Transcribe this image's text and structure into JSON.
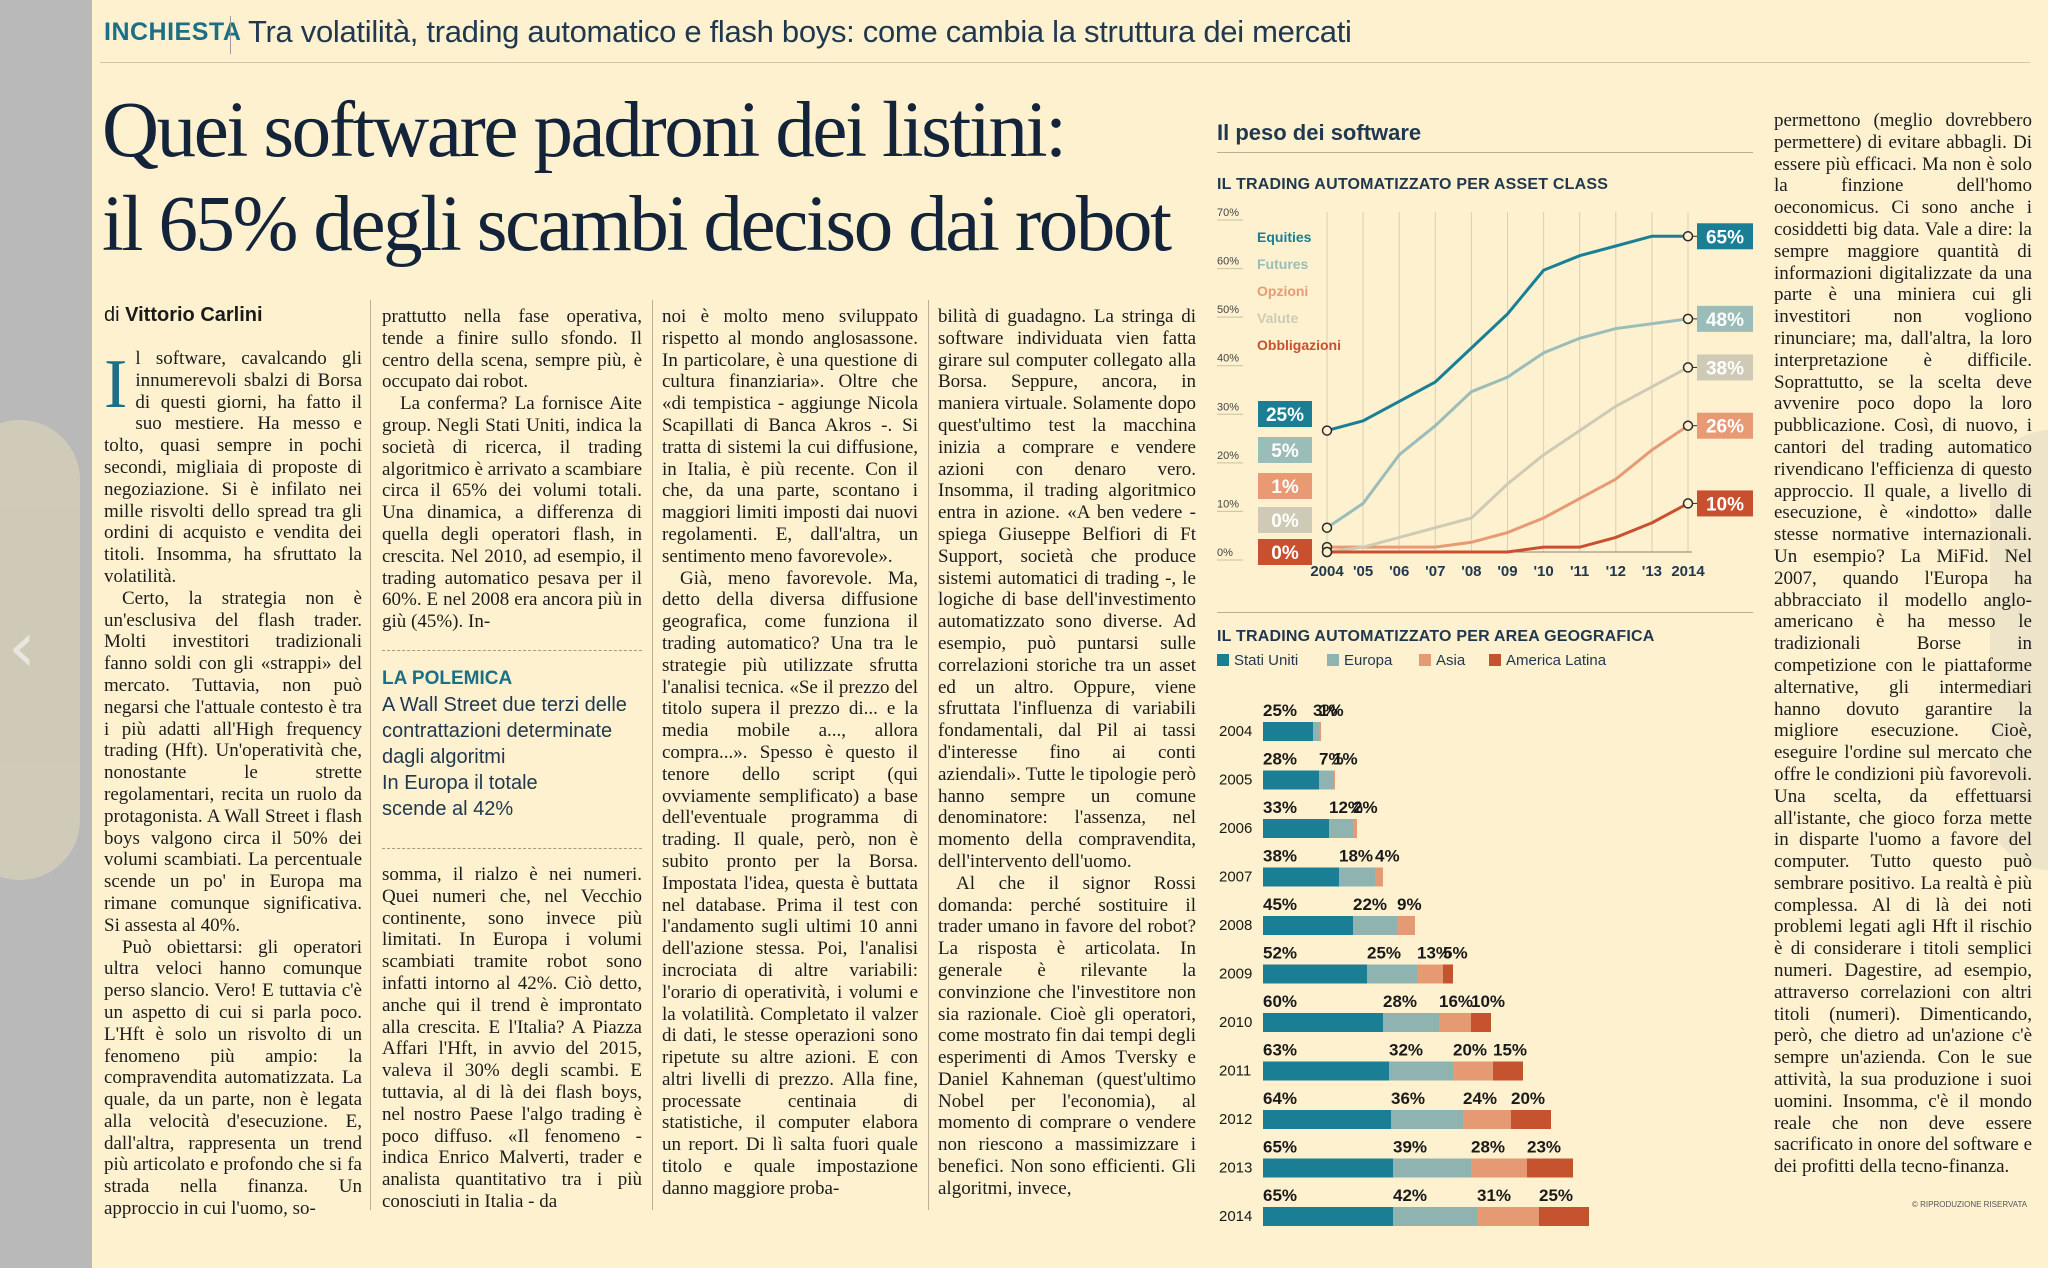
{
  "header": {
    "kicker": "INCHIESTA",
    "overline": "Tra volatilità, trading automatico e flash boys: come cambia la struttura dei mercati",
    "headline_1": "Quei software padroni dei listini:",
    "headline_2": "il 65% degli scambi deciso dai robot"
  },
  "byline": {
    "prefix": "di",
    "author": "Vittorio Carlini"
  },
  "article": {
    "dropcap": "I",
    "col1": [
      "l software, cavalcando gli innumerevoli sbalzi di Borsa di questi giorni, ha fatto il suo mestiere. Ha messo e tolto, quasi sempre in pochi secondi, migliaia di proposte di negoziazione. Si è infilato nei mille risvolti dello spread tra gli ordini di acquisto e vendita dei titoli. Insomma, ha sfruttato la volatilità.",
      "Certo, la strategia non è un'esclusiva del flash trader. Molti investitori tradizionali fanno soldi con gli «strappi» del mercato. Tuttavia, non può negarsi che l'attuale contesto è tra i più adatti all'High frequency trading (Hft). Un'operatività che, nonostante le strette regolamentari, recita un ruolo da protagonista. A Wall Street i flash boys valgono circa il 50% dei volumi scambiati. La percentuale scende un po' in Europa ma rimane comunque significativa. Si assesta al 40%.",
      "Può obiettarsi: gli operatori ultra veloci hanno comunque perso slancio. Vero! E tuttavia c'è un aspetto di cui si parla poco. L'Hft è solo un risvolto di un fenomeno più ampio: la compravendita automatizzata. La quale, da un parte, non è legata alla velocità d'esecuzione. E, dall'altra, rappresenta un trend più articolato e profondo che si fa strada nella finanza. Un approccio in cui l'uomo, so-"
    ],
    "col2": [
      "prattutto nella fase operativa, tende a finire sullo sfondo. Il centro della scena, sempre più, è occupato dai robot.",
      "La conferma? La fornisce Aite group. Negli Stati Uniti, indica la società di ricerca, il trading algoritmico è arrivato a scambiare circa il 65% dei volumi totali. Una dinamica, a differenza di quella degli operatori flash, in crescita. Nel 2010, ad esempio, il trading automatico pesava per il 60%. E nel 2008 era ancora più in giù (45%). In-",
      "somma, il rialzo è nei numeri. Quei numeri che, nel Vecchio continente, sono invece più limitati. In Europa i volumi scambiati tramite robot sono infatti intorno al 42%. Ciò detto, anche qui il trend è improntato alla crescita. E l'Italia? A Piazza Affari l'Hft, in avvio del 2015, valeva il 30% degli scambi. E tuttavia, al di là dei flash boys, nel nostro Paese l'algo trading è poco diffuso. «Il fenomeno - indica Enrico Malverti, trader e analista quantitativo tra i più conosciuti in Italia - da"
    ],
    "col3": [
      "noi è molto meno sviluppato rispetto al mondo anglosassone. In particolare, è una questione di cultura finanziaria». Oltre che «di tempistica - aggiunge Nicola Scapillati di Banca Akros -. Si tratta di sistemi la cui diffusione, in Italia, è più recente. Con il che, da una parte, scontano i maggiori limiti imposti dai nuovi regolamenti. E, dall'altra, un sentimento meno favorevole».",
      "Già, meno favorevole. Ma, detto della diversa diffusione geografica, come funziona il trading automatico? Una tra le strategie più utilizzate sfrutta l'analisi tecnica. «Se il prezzo del titolo supera il prezzo di... e la media mobile a..., allora compra...». Spesso è questo il tenore dello script (qui ovviamente semplificato) a base dell'eventuale programma di trading. Il quale, però, non è subito pronto per la Borsa. Impostata l'idea, questa è buttata nel database. Prima il test con l'andamento sugli ultimi 10 anni dell'azione stessa. Poi, l'analisi incrociata di altre variabili: l'orario di operatività, i volumi e la volatilità. Completato il valzer di dati, le stesse operazioni sono ripetute su altre azioni. E con altri livelli di prezzo. Alla fine, processate centinaia di statistiche, il computer elabora un report. Di lì salta fuori quale titolo e quale impostazione danno maggiore proba-"
    ],
    "col4": [
      "bilità di guadagno. La stringa di software individuata vien fatta girare sul computer collegato alla Borsa. Seppure, ancora, in maniera virtuale. Solamente dopo quest'ultimo test la macchina inizia a comprare e vendere azioni con denaro vero. Insomma, il trading algoritmico entra in azione. «A ben vedere - spiega Giuseppe Belfiori di Ft Support, società che produce sistemi automatici di trading -, le logiche di base dell'investimento automatizzato sono diverse. Ad esempio, può puntarsi sulle correlazioni storiche tra un asset ed un altro. Oppure, viene sfruttata l'influenza di variabili fondamentali, dal Pil ai tassi d'interesse fino ai conti aziendali». Tutte le tipologie però hanno sempre un comune denominatore: l'assenza, nel momento della compravendita, dell'intervento dell'uomo.",
      "Al che il signor Rossi domanda: perché sostituire il trader umano in favore del robot? La risposta è articolata. In generale è rilevante la convinzione che l'investitore non sia razionale. Cioè gli operatori, come mostrato fin dai tempi degli esperimenti di Amos Tversky e Daniel Kahneman (quest'ultimo Nobel per l'economia), al momento di comprare o vendere non riescono a massimizzare i benefici. Non sono efficienti. Gli algoritmi, invece,"
    ],
    "col5": [
      "permettono (meglio dovrebbero permettere) di evitare abbagli. Di essere più efficaci. Ma non è solo la finzione dell'homo oeconomicus. Ci sono anche i cosiddetti big data. Vale a dire: la sempre maggiore quantità di informazioni digitalizzate da una parte è una miniera cui gli investitori non vogliono rinunciare; ma, dall'altra, la loro interpretazione è difficile. Soprattutto, se la scelta deve avvenire poco dopo la loro pubblicazione. Così, di nuovo, i cantori del trading automatico rivendicano l'efficienza di questo approccio. Il quale, a livello di esecuzione, è «indotto» dalle stesse normative internazionali. Un esempio? La MiFid. Nel 2007, quando l'Europa ha abbracciato il modello anglo-americano è ha messo le tradizionali Borse in competizione con le piattaforme alternative, gli intermediari hanno dovuto garantire la migliore esecuzione. Cioè, eseguire l'ordine sul mercato che offre le condizioni più favorevoli. Una scelta, da effettuarsi all'istante, che gioco forza mette in disparte l'uomo a favore del computer. Tutto questo può sembrare positivo. La realtà è più complessa. Al di là dei noti problemi legati agli Hft il rischio è di considerare i titoli semplici numeri. Dagestire, ad esempio, attraverso correlazioni con altri titoli (numeri). Dimenticando, però, che dietro ad un'azione c'è sempre un'azienda. Con le sue attività, la sua produzione i suoi uomini. Insomma, c'è il mondo reale che non deve essere sacrificato in onore del software e dei profitti della tecno-finanza."
    ]
  },
  "polemica": {
    "title": "LA POLEMICA",
    "lines": [
      "A Wall Street due terzi delle",
      "contrattazioni determinate",
      "dagli algoritmi",
      "In Europa il totale",
      "scende al 42%"
    ]
  },
  "charts": {
    "box_title": "Il peso dei software",
    "line_title": "IL TRADING AUTOMATIZZATO PER ASSET CLASS",
    "bar_title": "IL TRADING AUTOMATIZZATO PER AREA GEOGRAFICA"
  },
  "footer": {
    "copyright": "© RIPRODUZIONE RISERVATA"
  },
  "chart_data": [
    {
      "type": "line",
      "title": "IL TRADING AUTOMATIZZATO PER ASSET CLASS",
      "x": [
        2004,
        2005,
        2006,
        2007,
        2008,
        2009,
        2010,
        2011,
        2012,
        2013,
        2014
      ],
      "x_tick_labels": [
        "2004",
        "'05",
        "'06",
        "'07",
        "'08",
        "'09",
        "'10",
        "'11",
        "'12",
        "'13",
        "2014"
      ],
      "y_tick_labels": [
        "70%",
        "60%",
        "50%",
        "40%",
        "30%",
        "20%",
        "10%",
        "0%"
      ],
      "ylim": [
        0,
        70
      ],
      "grid": "vertical",
      "legend_position": "top-left",
      "series": [
        {
          "name": "Equities",
          "color": "#1a7f95",
          "values": [
            25,
            27,
            31,
            35,
            42,
            49,
            58,
            61,
            63,
            65,
            65
          ],
          "start_label": "25%",
          "end_label": "65%"
        },
        {
          "name": "Futures",
          "color": "#9bbdba",
          "values": [
            5,
            10,
            20,
            26,
            33,
            36,
            41,
            44,
            46,
            47,
            48
          ],
          "start_label": "5%",
          "end_label": "48%"
        },
        {
          "name": "Opzioni",
          "color": "#e89a74",
          "values": [
            1,
            1,
            1,
            1,
            2,
            4,
            7,
            11,
            15,
            21,
            26
          ],
          "start_label": "1%",
          "end_label": "26%"
        },
        {
          "name": "Valute",
          "color": "#cfcab6",
          "values": [
            0,
            1,
            3,
            5,
            7,
            14,
            20,
            25,
            30,
            34,
            38
          ],
          "start_label": "0%",
          "end_label": "38%"
        },
        {
          "name": "Obbligazioni",
          "color": "#c8502e",
          "values": [
            0,
            0,
            0,
            0,
            0,
            0,
            1,
            1,
            3,
            6,
            10
          ],
          "start_label": "0%",
          "end_label": "10%"
        }
      ]
    },
    {
      "type": "bar",
      "stacked": true,
      "orientation": "horizontal",
      "title": "IL TRADING AUTOMATIZZATO PER AREA GEOGRAFICA",
      "legend_position": "top",
      "categories": [
        "2004",
        "2005",
        "2006",
        "2007",
        "2008",
        "2009",
        "2010",
        "2011",
        "2012",
        "2013",
        "2014"
      ],
      "series": [
        {
          "name": "Stati Uniti",
          "color": "#1a7f95",
          "values": [
            25,
            28,
            33,
            38,
            45,
            52,
            60,
            63,
            64,
            65,
            65
          ]
        },
        {
          "name": "Europa",
          "color": "#8fb3b0",
          "values": [
            3,
            7,
            12,
            18,
            22,
            25,
            28,
            32,
            36,
            39,
            42
          ]
        },
        {
          "name": "Asia",
          "color": "#e59a74",
          "values": [
            1,
            1,
            2,
            4,
            9,
            13,
            16,
            20,
            24,
            28,
            31
          ]
        },
        {
          "name": "America Latina",
          "color": "#c6532f",
          "values": [
            0,
            0,
            0,
            0,
            0,
            5,
            10,
            15,
            20,
            23,
            25
          ]
        }
      ]
    }
  ]
}
